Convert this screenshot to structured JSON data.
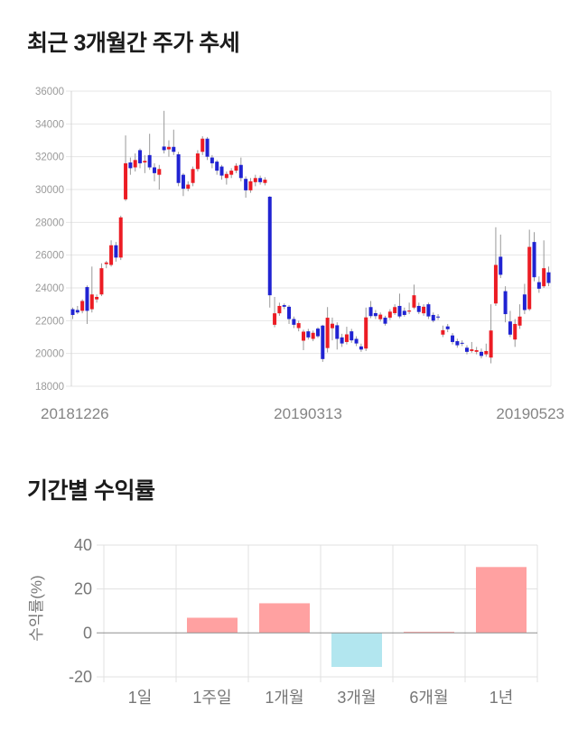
{
  "section1": {
    "title": "최근 3개월간 주가 추세"
  },
  "section2": {
    "title": "기간별 수익률"
  },
  "chart_data": [
    {
      "type": "candlestick",
      "title": "최근 3개월간 주가 추세",
      "ylim": [
        18000,
        36000
      ],
      "y_ticks": [
        36000,
        34000,
        32000,
        30000,
        28000,
        26000,
        24000,
        22000,
        20000,
        18000
      ],
      "x_labels": [
        "20181226",
        "20190313",
        "20190523"
      ],
      "grid": true,
      "colors": {
        "up": "#ec1c24",
        "down": "#2023d2",
        "wick": "#999999"
      },
      "candles_format": [
        "open",
        "high",
        "low",
        "close"
      ],
      "candles": [
        [
          22700,
          22800,
          22100,
          22350
        ],
        [
          22650,
          22900,
          22400,
          22500
        ],
        [
          22600,
          23300,
          22450,
          23200
        ],
        [
          24050,
          24150,
          21800,
          22600
        ],
        [
          22700,
          25300,
          22500,
          23600
        ],
        [
          23300,
          23600,
          23100,
          23450
        ],
        [
          23600,
          25500,
          23500,
          25200
        ],
        [
          25450,
          25650,
          25200,
          25550
        ],
        [
          25400,
          26900,
          25300,
          26600
        ],
        [
          26600,
          26800,
          25600,
          25850
        ],
        [
          25850,
          28400,
          25700,
          28300
        ],
        [
          29400,
          33300,
          29300,
          31600
        ],
        [
          31650,
          31950,
          30900,
          31300
        ],
        [
          31350,
          32200,
          31100,
          31800
        ],
        [
          32400,
          32500,
          31300,
          31600
        ],
        [
          31650,
          32100,
          31000,
          31750
        ],
        [
          32100,
          33400,
          31200,
          31350
        ],
        [
          31350,
          31600,
          30500,
          31000
        ],
        [
          30900,
          31500,
          30000,
          31250
        ],
        [
          32620,
          34800,
          32200,
          32400
        ],
        [
          32450,
          33000,
          32000,
          32600
        ],
        [
          32600,
          33650,
          32100,
          32300
        ],
        [
          32150,
          32300,
          30200,
          30400
        ],
        [
          30900,
          31000,
          29600,
          30050
        ],
        [
          30050,
          30500,
          29900,
          30300
        ],
        [
          30400,
          31400,
          30200,
          31250
        ],
        [
          31250,
          32400,
          31100,
          32200
        ],
        [
          32300,
          33250,
          32100,
          33100
        ],
        [
          33100,
          33200,
          31800,
          32000
        ],
        [
          31950,
          32100,
          31300,
          31600
        ],
        [
          31700,
          31800,
          30900,
          31150
        ],
        [
          31400,
          31500,
          30600,
          30850
        ],
        [
          30700,
          31100,
          30300,
          30950
        ],
        [
          30900,
          31300,
          30700,
          31150
        ],
        [
          31150,
          31600,
          31000,
          31450
        ],
        [
          31500,
          31950,
          30500,
          30700
        ],
        [
          30650,
          30800,
          29500,
          29950
        ],
        [
          29950,
          30700,
          29800,
          30500
        ],
        [
          30450,
          30900,
          30200,
          30700
        ],
        [
          30700,
          30850,
          30300,
          30450
        ],
        [
          30400,
          30750,
          30250,
          30600
        ],
        [
          29560,
          29600,
          22800,
          23550
        ],
        [
          21750,
          23450,
          21600,
          22450
        ],
        [
          22450,
          23100,
          22300,
          22900
        ],
        [
          22950,
          23050,
          22700,
          22850
        ],
        [
          22850,
          22950,
          21800,
          22100
        ],
        [
          22100,
          22250,
          21550,
          21750
        ],
        [
          21550,
          22000,
          21350,
          21850
        ],
        [
          20780,
          21450,
          20200,
          21330
        ],
        [
          21350,
          21500,
          20850,
          20980
        ],
        [
          20890,
          21400,
          20750,
          21260
        ],
        [
          21515,
          21600,
          20950,
          21050
        ],
        [
          21700,
          21750,
          19490,
          19660
        ],
        [
          20330,
          22830,
          20060,
          22180
        ],
        [
          21540,
          22190,
          20800,
          21815
        ],
        [
          21720,
          21900,
          20240,
          20890
        ],
        [
          20980,
          21200,
          20400,
          20610
        ],
        [
          20700,
          21630,
          20550,
          21165
        ],
        [
          21350,
          21500,
          20650,
          20800
        ],
        [
          20890,
          21050,
          20450,
          20610
        ],
        [
          20430,
          20600,
          20100,
          20240
        ],
        [
          20300,
          22800,
          20150,
          22200
        ],
        [
          22830,
          23200,
          22150,
          22280
        ],
        [
          22460,
          22650,
          22100,
          22280
        ],
        [
          22090,
          22500,
          21950,
          22370
        ],
        [
          22185,
          22300,
          21700,
          21815
        ],
        [
          22185,
          22700,
          22050,
          22550
        ],
        [
          22460,
          23000,
          22350,
          22830
        ],
        [
          22900,
          23650,
          22150,
          22260
        ],
        [
          22600,
          22800,
          22250,
          22350
        ],
        [
          22550,
          23100,
          22400,
          22620
        ],
        [
          22800,
          24200,
          22700,
          23550
        ],
        [
          22900,
          23100,
          22400,
          22530
        ],
        [
          22450,
          23000,
          22300,
          22850
        ],
        [
          23000,
          23100,
          22100,
          22260
        ],
        [
          22350,
          22500,
          21900,
          22000
        ],
        [
          22250,
          22400,
          22050,
          22200
        ],
        [
          21150,
          21700,
          21000,
          21420
        ],
        [
          21650,
          21800,
          21300,
          21480
        ],
        [
          21100,
          21250,
          20550,
          20700
        ],
        [
          20750,
          20900,
          20350,
          20500
        ],
        [
          20650,
          20800,
          20450,
          20600
        ],
        [
          20350,
          20500,
          19950,
          20100
        ],
        [
          20150,
          20700,
          20050,
          20250
        ],
        [
          20100,
          20400,
          19950,
          20200
        ],
        [
          20100,
          20300,
          19700,
          19850
        ],
        [
          19950,
          20600,
          19800,
          20150
        ],
        [
          19750,
          23000,
          19400,
          21400
        ],
        [
          23050,
          27700,
          22900,
          25400
        ],
        [
          25900,
          27250,
          24600,
          24800
        ],
        [
          23800,
          24100,
          21900,
          22400
        ],
        [
          21950,
          22600,
          21000,
          21150
        ],
        [
          20850,
          22100,
          20400,
          21800
        ],
        [
          21700,
          23000,
          21500,
          22250
        ],
        [
          23600,
          24250,
          22400,
          22650
        ],
        [
          22700,
          27550,
          22600,
          26500
        ],
        [
          26800,
          27400,
          24400,
          24650
        ],
        [
          24350,
          24700,
          23700,
          23950
        ],
        [
          24100,
          26900,
          24000,
          25200
        ],
        [
          24950,
          25300,
          24100,
          24300
        ]
      ]
    },
    {
      "type": "bar",
      "title": "기간별 수익률",
      "categories": [
        "1일",
        "1주일",
        "1개월",
        "3개월",
        "6개월",
        "1년"
      ],
      "values": [
        0,
        6.9,
        13.5,
        -15.5,
        0.5,
        30
      ],
      "ylabel": "수익률(%)",
      "y_ticks": [
        40,
        20,
        0,
        -20
      ],
      "ylim": [
        -20,
        40
      ],
      "grid": true,
      "legend": false,
      "colors": {
        "positive": "#ffa1a1",
        "negative": "#b2e6ef"
      }
    }
  ]
}
